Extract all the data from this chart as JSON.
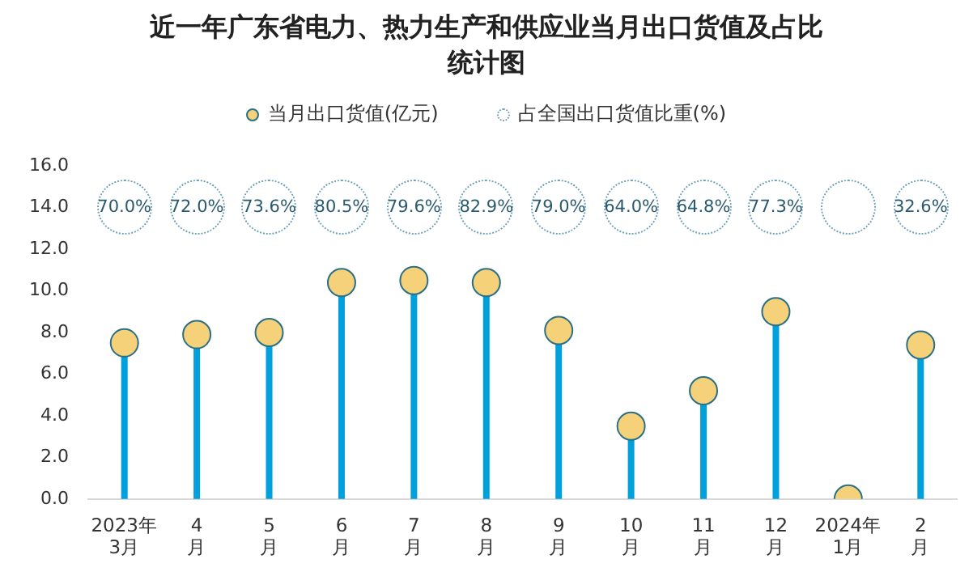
{
  "chart_data": [
    {
      "type": "lollipop",
      "title": "近一年广东省电力、热力生产和供应业当月出口货值及占比统计图",
      "categories": [
        "2023年3月",
        "4月",
        "5月",
        "6月",
        "7月",
        "8月",
        "9月",
        "10月",
        "11月",
        "12月",
        "2024年1月",
        "2月"
      ],
      "series": [
        {
          "name": "当月出口货值(亿元)",
          "color": "#f5d27a",
          "values": [
            7.5,
            7.9,
            8.0,
            10.4,
            10.5,
            10.4,
            8.1,
            3.5,
            5.2,
            9.0,
            0.0,
            7.4
          ]
        }
      ],
      "ylim": [
        0,
        16
      ],
      "yticks": [
        {
          "value": 0,
          "label": "0.0"
        },
        {
          "value": 2,
          "label": "2.0"
        },
        {
          "value": 4,
          "label": "4.0"
        },
        {
          "value": 6,
          "label": "6.0"
        },
        {
          "value": 8,
          "label": "8.0"
        },
        {
          "value": 10,
          "label": "10.0"
        },
        {
          "value": 12,
          "label": "12.0"
        },
        {
          "value": 14,
          "label": "14.0"
        },
        {
          "value": 16,
          "label": "16.0"
        }
      ],
      "grid": false,
      "legend": "top",
      "marker": "circle"
    },
    {
      "type": "other",
      "legend": "top",
      "series": [
        {
          "name": "占全国出口货值比重(%)",
          "color": "#6a9fb5",
          "values": [
            70.0,
            72.0,
            73.6,
            80.5,
            79.6,
            82.9,
            79.0,
            64.0,
            64.8,
            77.3,
            null,
            32.6
          ],
          "value_labels": [
            "70.0%",
            "72.0%",
            "73.6%",
            "80.5%",
            "79.6%",
            "82.9%",
            "79.0%",
            "64.0%",
            "64.8%",
            "77.3%",
            null,
            "32.6%"
          ]
        }
      ]
    }
  ]
}
